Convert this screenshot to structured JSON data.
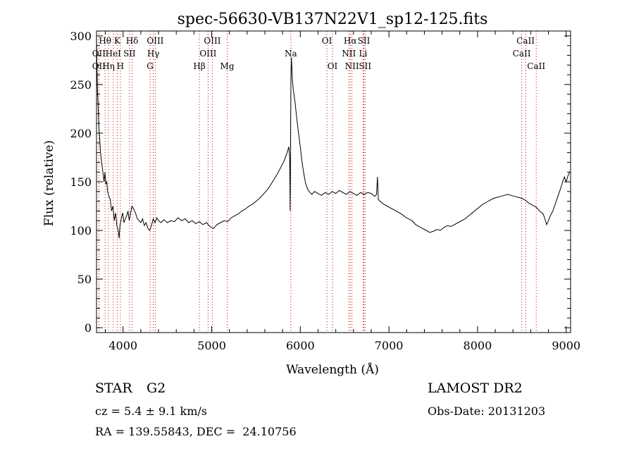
{
  "chart_data": {
    "type": "line",
    "title": "spec-56630-VB137N22V1_sp12-125.fits",
    "xlabel": "Wavelength (Å)",
    "ylabel": "Flux (relative)",
    "xlim": [
      3700,
      9050
    ],
    "ylim": [
      -5,
      305
    ],
    "xticks": [
      4000,
      5000,
      6000,
      7000,
      8000,
      9000
    ],
    "yticks": [
      0,
      50,
      100,
      150,
      200,
      250,
      300
    ],
    "grid": false,
    "series": [
      {
        "points": [
          [
            3700,
            300
          ],
          [
            3705,
            270
          ],
          [
            3712,
            240
          ],
          [
            3720,
            225
          ],
          [
            3728,
            205
          ],
          [
            3736,
            195
          ],
          [
            3745,
            180
          ],
          [
            3755,
            172
          ],
          [
            3765,
            165
          ],
          [
            3775,
            158
          ],
          [
            3785,
            150
          ],
          [
            3795,
            160
          ],
          [
            3805,
            148
          ],
          [
            3815,
            150
          ],
          [
            3825,
            140
          ],
          [
            3840,
            135
          ],
          [
            3855,
            132
          ],
          [
            3870,
            120
          ],
          [
            3885,
            125
          ],
          [
            3900,
            110
          ],
          [
            3915,
            118
          ],
          [
            3930,
            105
          ],
          [
            3945,
            100
          ],
          [
            3955,
            92
          ],
          [
            3965,
            105
          ],
          [
            3980,
            112
          ],
          [
            3995,
            118
          ],
          [
            4010,
            108
          ],
          [
            4025,
            112
          ],
          [
            4040,
            115
          ],
          [
            4055,
            120
          ],
          [
            4070,
            110
          ],
          [
            4085,
            118
          ],
          [
            4100,
            125
          ],
          [
            4120,
            122
          ],
          [
            4140,
            118
          ],
          [
            4160,
            112
          ],
          [
            4180,
            110
          ],
          [
            4200,
            108
          ],
          [
            4220,
            112
          ],
          [
            4240,
            105
          ],
          [
            4260,
            108
          ],
          [
            4280,
            102
          ],
          [
            4300,
            100
          ],
          [
            4320,
            105
          ],
          [
            4340,
            112
          ],
          [
            4360,
            108
          ],
          [
            4380,
            113
          ],
          [
            4400,
            110
          ],
          [
            4430,
            108
          ],
          [
            4460,
            111
          ],
          [
            4500,
            108
          ],
          [
            4540,
            110
          ],
          [
            4580,
            109
          ],
          [
            4620,
            113
          ],
          [
            4660,
            110
          ],
          [
            4700,
            112
          ],
          [
            4740,
            108
          ],
          [
            4780,
            110
          ],
          [
            4820,
            107
          ],
          [
            4860,
            109
          ],
          [
            4900,
            106
          ],
          [
            4940,
            108
          ],
          [
            4980,
            104
          ],
          [
            5020,
            102
          ],
          [
            5060,
            106
          ],
          [
            5100,
            108
          ],
          [
            5140,
            110
          ],
          [
            5180,
            109
          ],
          [
            5220,
            113
          ],
          [
            5260,
            115
          ],
          [
            5300,
            117
          ],
          [
            5340,
            120
          ],
          [
            5380,
            122
          ],
          [
            5420,
            125
          ],
          [
            5460,
            127
          ],
          [
            5500,
            130
          ],
          [
            5540,
            133
          ],
          [
            5580,
            137
          ],
          [
            5620,
            141
          ],
          [
            5660,
            146
          ],
          [
            5700,
            152
          ],
          [
            5740,
            158
          ],
          [
            5780,
            165
          ],
          [
            5820,
            172
          ],
          [
            5850,
            180
          ],
          [
            5870,
            186
          ],
          [
            5880,
            175
          ],
          [
            5885,
            120
          ],
          [
            5890,
            200
          ],
          [
            5895,
            262
          ],
          [
            5900,
            278
          ],
          [
            5910,
            255
          ],
          [
            5920,
            245
          ],
          [
            5940,
            232
          ],
          [
            5960,
            215
          ],
          [
            5980,
            200
          ],
          [
            6000,
            186
          ],
          [
            6020,
            170
          ],
          [
            6040,
            158
          ],
          [
            6060,
            148
          ],
          [
            6080,
            143
          ],
          [
            6100,
            140
          ],
          [
            6130,
            137
          ],
          [
            6160,
            140
          ],
          [
            6200,
            138
          ],
          [
            6240,
            136
          ],
          [
            6280,
            139
          ],
          [
            6320,
            137
          ],
          [
            6360,
            140
          ],
          [
            6400,
            138
          ],
          [
            6440,
            141
          ],
          [
            6480,
            139
          ],
          [
            6520,
            137
          ],
          [
            6560,
            140
          ],
          [
            6600,
            138
          ],
          [
            6640,
            136
          ],
          [
            6680,
            139
          ],
          [
            6720,
            137
          ],
          [
            6760,
            139
          ],
          [
            6800,
            138
          ],
          [
            6840,
            135
          ],
          [
            6860,
            137
          ],
          [
            6870,
            155
          ],
          [
            6875,
            145
          ],
          [
            6880,
            132
          ],
          [
            6900,
            130
          ],
          [
            6940,
            127
          ],
          [
            6980,
            125
          ],
          [
            7020,
            123
          ],
          [
            7060,
            121
          ],
          [
            7100,
            119
          ],
          [
            7140,
            117
          ],
          [
            7180,
            114
          ],
          [
            7220,
            112
          ],
          [
            7260,
            110
          ],
          [
            7300,
            106
          ],
          [
            7340,
            104
          ],
          [
            7380,
            102
          ],
          [
            7420,
            100
          ],
          [
            7460,
            98
          ],
          [
            7500,
            99
          ],
          [
            7540,
            101
          ],
          [
            7580,
            100
          ],
          [
            7620,
            103
          ],
          [
            7660,
            105
          ],
          [
            7700,
            104
          ],
          [
            7740,
            106
          ],
          [
            7780,
            108
          ],
          [
            7820,
            110
          ],
          [
            7860,
            112
          ],
          [
            7900,
            115
          ],
          [
            7940,
            118
          ],
          [
            7980,
            121
          ],
          [
            8020,
            124
          ],
          [
            8060,
            127
          ],
          [
            8100,
            129
          ],
          [
            8140,
            131
          ],
          [
            8180,
            133
          ],
          [
            8220,
            134
          ],
          [
            8260,
            135
          ],
          [
            8300,
            136
          ],
          [
            8340,
            137
          ],
          [
            8380,
            136
          ],
          [
            8420,
            135
          ],
          [
            8460,
            134
          ],
          [
            8500,
            133
          ],
          [
            8540,
            131
          ],
          [
            8580,
            128
          ],
          [
            8620,
            126
          ],
          [
            8660,
            124
          ],
          [
            8700,
            120
          ],
          [
            8740,
            117
          ],
          [
            8760,
            112
          ],
          [
            8780,
            106
          ],
          [
            8800,
            110
          ],
          [
            8820,
            115
          ],
          [
            8850,
            120
          ],
          [
            8880,
            128
          ],
          [
            8910,
            136
          ],
          [
            8940,
            144
          ],
          [
            8960,
            150
          ],
          [
            8980,
            155
          ],
          [
            9000,
            150
          ],
          [
            9020,
            156
          ],
          [
            9040,
            160
          ]
        ]
      }
    ],
    "lines": [
      {
        "label": "Hθ",
        "x": 3797,
        "row": 0
      },
      {
        "label": "OII",
        "x": 3727,
        "row": 1
      },
      {
        "label": "OII",
        "x": 3727,
        "row": 2
      },
      {
        "label": "K",
        "x": 3934,
        "row": 0
      },
      {
        "label": "HeI",
        "x": 3889,
        "row": 1
      },
      {
        "label": "Hη",
        "x": 3835,
        "row": 2
      },
      {
        "label": "Hδ",
        "x": 4102,
        "row": 0
      },
      {
        "label": "SII",
        "x": 4072,
        "row": 1
      },
      {
        "label": "H",
        "x": 3969,
        "row": 2
      },
      {
        "label": "OIII",
        "x": 4363,
        "row": 0
      },
      {
        "label": "Hγ",
        "x": 4341,
        "row": 1
      },
      {
        "label": "G",
        "x": 4305,
        "row": 2
      },
      {
        "label": "OIII",
        "x": 5007,
        "row": 0
      },
      {
        "label": "OIII",
        "x": 4959,
        "row": 1
      },
      {
        "label": "Hβ",
        "x": 4861,
        "row": 2
      },
      {
        "label": "Mg",
        "x": 5175,
        "row": 2
      },
      {
        "label": "Na",
        "x": 5893,
        "row": 1
      },
      {
        "label": "OI",
        "x": 6300,
        "row": 0
      },
      {
        "label": "OI",
        "x": 6363,
        "row": 2
      },
      {
        "label": "Hα",
        "x": 6563,
        "row": 0
      },
      {
        "label": "NII",
        "x": 6548,
        "row": 1
      },
      {
        "label": "NII",
        "x": 6583,
        "row": 2
      },
      {
        "label": "SII",
        "x": 6717,
        "row": 0
      },
      {
        "label": "Li",
        "x": 6708,
        "row": 1
      },
      {
        "label": "SII",
        "x": 6731,
        "row": 2
      },
      {
        "label": "CaII",
        "x": 8542,
        "row": 0
      },
      {
        "label": "CaII",
        "x": 8498,
        "row": 1
      },
      {
        "label": "CaII",
        "x": 8662,
        "row": 2
      }
    ]
  },
  "info": {
    "class_label": "STAR",
    "subclass": "G2",
    "cz": "cz = 5.4 ± 9.1 km/s",
    "coords": "RA = 139.55843, DEC =  24.10756",
    "survey": "LAMOST DR2",
    "obs_date": "Obs-Date: 20131203"
  },
  "colors": {
    "line_marker": "#cc0000",
    "series": "#000000"
  }
}
